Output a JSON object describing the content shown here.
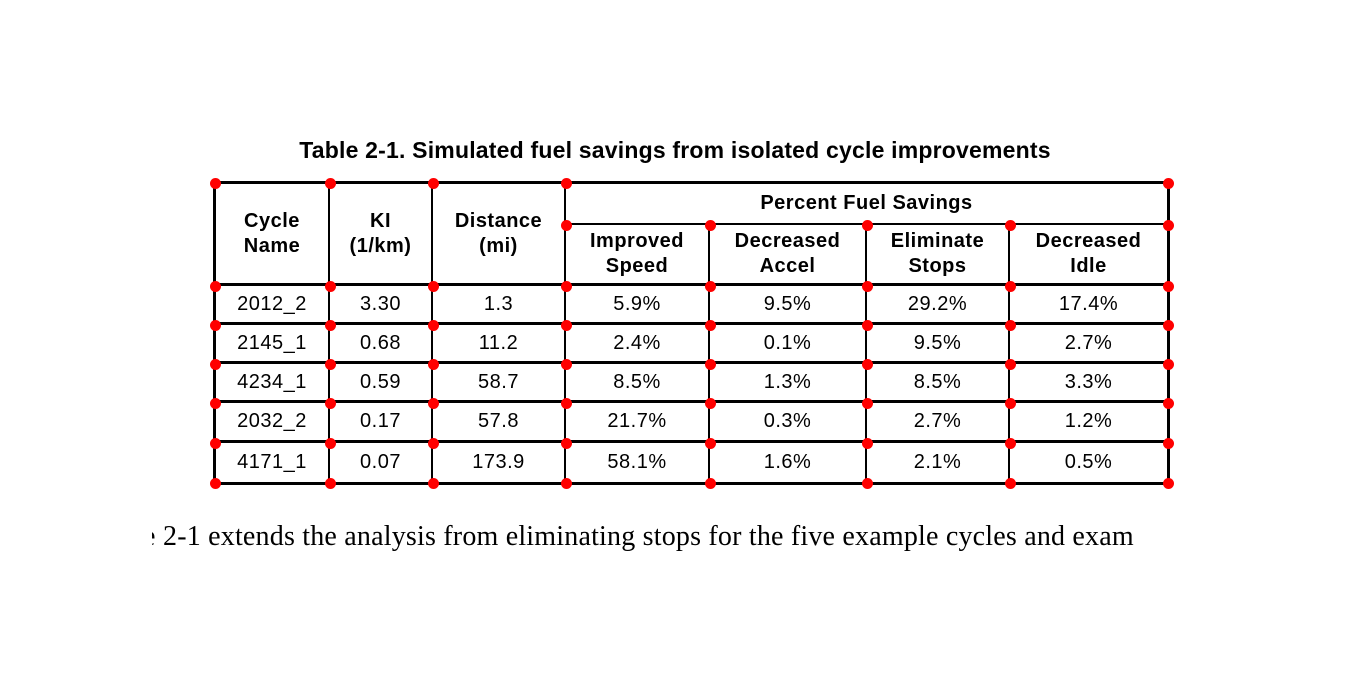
{
  "caption": "Table 2-1. Simulated fuel savings from isolated cycle improvements",
  "table": {
    "col_headers": [
      "Cycle\nName",
      "KI\n(1/km)",
      "Distance\n(mi)"
    ],
    "group_header": "Percent Fuel Savings",
    "sub_headers": [
      "Improved\nSpeed",
      "Decreased\nAccel",
      "Eliminate\nStops",
      "Decreased\nIdle"
    ],
    "rows": [
      [
        "2012_2",
        "3.30",
        "1.3",
        "5.9%",
        "9.5%",
        "29.2%",
        "17.4%"
      ],
      [
        "2145_1",
        "0.68",
        "11.2",
        "2.4%",
        "0.1%",
        "9.5%",
        "2.7%"
      ],
      [
        "4234_1",
        "0.59",
        "58.7",
        "8.5%",
        "1.3%",
        "8.5%",
        "3.3%"
      ],
      [
        "2032_2",
        "0.17",
        "57.8",
        "21.7%",
        "0.3%",
        "2.7%",
        "1.2%"
      ],
      [
        "4171_1",
        "0.07",
        "173.9",
        "58.1%",
        "1.6%",
        "2.1%",
        "0.5%"
      ]
    ]
  },
  "annotation": {
    "marker_color": "#ff0000"
  },
  "body_text": {
    "clipped_prefix": "e",
    "text": "2-1 extends the analysis from eliminating stops for the five example cycles and exam"
  }
}
